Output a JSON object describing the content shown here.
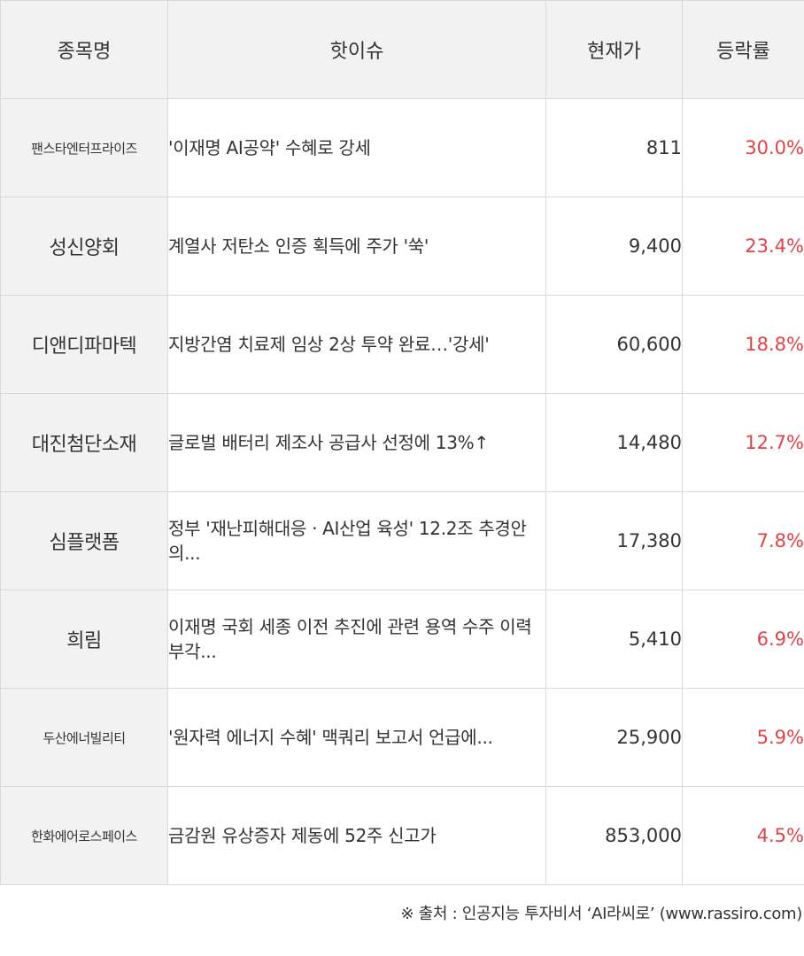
{
  "header": {
    "name": "종목명",
    "issue": "핫이슈",
    "price": "현재가",
    "change": "등락률"
  },
  "rows": [
    {
      "name": "팬스타엔터프라이즈",
      "issue": "'이재명 AI공약' 수혜로 강세",
      "price": "811",
      "change": "30.0%"
    },
    {
      "name": "성신양회",
      "issue": "계열사 저탄소 인증 획득에 주가 '쑥'",
      "price": "9,400",
      "change": "23.4%"
    },
    {
      "name": "디앤디파마텍",
      "issue": "지방간염 치료제 임상 2상 투약 완료…'강세'",
      "price": "60,600",
      "change": "18.8%"
    },
    {
      "name": "대진첨단소재",
      "issue": "글로벌 배터리 제조사 공급사 선정에 13%↑",
      "price": "14,480",
      "change": "12.7%"
    },
    {
      "name": "심플랫폼",
      "issue": "정부 '재난피해대응ㆍAI산업 육성' 12.2조 추경안 의...",
      "price": "17,380",
      "change": "7.8%"
    },
    {
      "name": "희림",
      "issue": "이재명 국회 세종 이전 추진에 관련 용역 수주 이력 부각...",
      "price": "5,410",
      "change": "6.9%"
    },
    {
      "name": "두산에너빌리티",
      "issue": "'원자력 에너지 수혜' 맥쿼리 보고서 언급에...",
      "price": "25,900",
      "change": "5.9%"
    },
    {
      "name": "한화에어로스페이스",
      "issue": "금감원 유상증자 제동에 52주 신고가",
      "price": "853,000",
      "change": "4.5%"
    }
  ],
  "source": "※ 출처 : 인공지능 투자비서 ‘AI라씨로’ (www.rassiro.com)",
  "colors": {
    "header_bg": "#f2f2f2",
    "border": "#d9d9d9",
    "up": "#e0434a"
  }
}
